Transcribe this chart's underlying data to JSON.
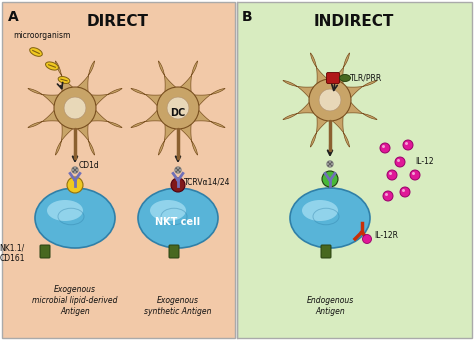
{
  "bg_left": "#f2c9a8",
  "bg_right": "#d8ecc0",
  "title_direct": "DIRECT",
  "title_indirect": "INDIRECT",
  "label_a": "A",
  "label_b": "B",
  "dc_color": "#c8a468",
  "dc_center_color": "#e8d8b8",
  "nkt_cell_color": "#58b4d8",
  "nkt_cell_highlight": "#b8e8f8",
  "nkt_cell_dark": "#3080a8",
  "stem_color": "#8b6030",
  "cd1d_color_left": "#f0c820",
  "cd1d_color_mid": "#801818",
  "cd1d_color_right": "#48b838",
  "tcr_color": "#7070b8",
  "marker_color": "#e01898",
  "tlr_red": "#b01818",
  "tlr_green": "#486820",
  "microorganism_color": "#f0c820",
  "arrow_color": "#202020",
  "text_color": "#101010",
  "green_receptor": "#486820",
  "il12r_red": "#c83008",
  "text_italic_color": "#202020"
}
